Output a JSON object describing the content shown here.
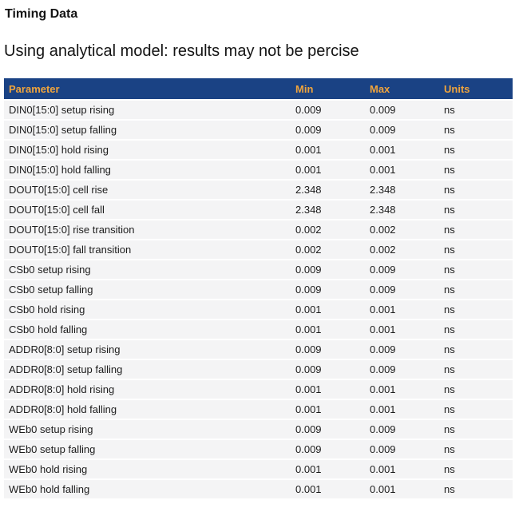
{
  "page": {
    "title": "Timing Data",
    "subtitle": "Using analytical model: results may not be percise"
  },
  "table": {
    "columns": [
      "Parameter",
      "Min",
      "Max",
      "Units"
    ],
    "rows": [
      {
        "parameter": "DIN0[15:0] setup rising",
        "min": "0.009",
        "max": "0.009",
        "units": "ns"
      },
      {
        "parameter": "DIN0[15:0] setup falling",
        "min": "0.009",
        "max": "0.009",
        "units": "ns"
      },
      {
        "parameter": "DIN0[15:0] hold rising",
        "min": "0.001",
        "max": "0.001",
        "units": "ns"
      },
      {
        "parameter": "DIN0[15:0] hold falling",
        "min": "0.001",
        "max": "0.001",
        "units": "ns"
      },
      {
        "parameter": "DOUT0[15:0] cell rise",
        "min": "2.348",
        "max": "2.348",
        "units": "ns"
      },
      {
        "parameter": "DOUT0[15:0] cell fall",
        "min": "2.348",
        "max": "2.348",
        "units": "ns"
      },
      {
        "parameter": "DOUT0[15:0] rise transition",
        "min": "0.002",
        "max": "0.002",
        "units": "ns"
      },
      {
        "parameter": "DOUT0[15:0] fall transition",
        "min": "0.002",
        "max": "0.002",
        "units": "ns"
      },
      {
        "parameter": "CSb0 setup rising",
        "min": "0.009",
        "max": "0.009",
        "units": "ns"
      },
      {
        "parameter": "CSb0 setup falling",
        "min": "0.009",
        "max": "0.009",
        "units": "ns"
      },
      {
        "parameter": "CSb0 hold rising",
        "min": "0.001",
        "max": "0.001",
        "units": "ns"
      },
      {
        "parameter": "CSb0 hold falling",
        "min": "0.001",
        "max": "0.001",
        "units": "ns"
      },
      {
        "parameter": "ADDR0[8:0] setup rising",
        "min": "0.009",
        "max": "0.009",
        "units": "ns"
      },
      {
        "parameter": "ADDR0[8:0] setup falling",
        "min": "0.009",
        "max": "0.009",
        "units": "ns"
      },
      {
        "parameter": "ADDR0[8:0] hold rising",
        "min": "0.001",
        "max": "0.001",
        "units": "ns"
      },
      {
        "parameter": "ADDR0[8:0] hold falling",
        "min": "0.001",
        "max": "0.001",
        "units": "ns"
      },
      {
        "parameter": "WEb0 setup rising",
        "min": "0.009",
        "max": "0.009",
        "units": "ns"
      },
      {
        "parameter": "WEb0 setup falling",
        "min": "0.009",
        "max": "0.009",
        "units": "ns"
      },
      {
        "parameter": "WEb0 hold rising",
        "min": "0.001",
        "max": "0.001",
        "units": "ns"
      },
      {
        "parameter": "WEb0 hold falling",
        "min": "0.001",
        "max": "0.001",
        "units": "ns"
      }
    ]
  },
  "colors": {
    "header_bg": "#1A4284",
    "header_text": "#F0A43C",
    "row_bg": "#F4F4F5",
    "row_text": "#1C1C1C"
  }
}
